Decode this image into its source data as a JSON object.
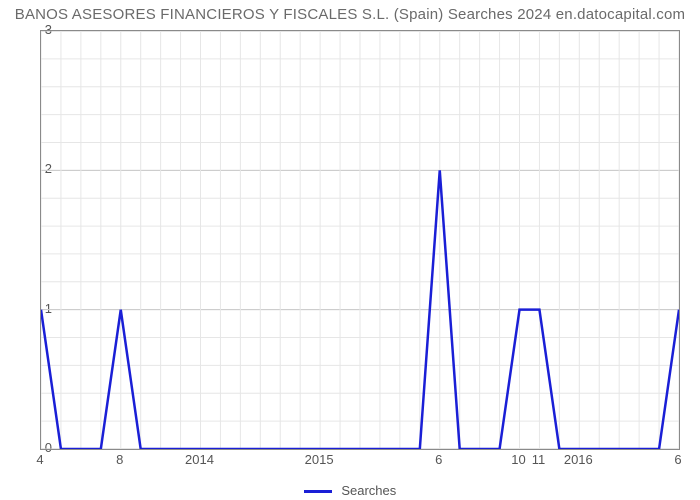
{
  "chart": {
    "type": "line",
    "title": "BANOS ASESORES FINANCIEROS Y FISCALES S.L. (Spain) Searches 2024 en.datocapital.com",
    "title_color": "#6a6a6a",
    "title_fontsize": 15,
    "background_color": "#ffffff",
    "plot_border_color": "#8a8a8a",
    "major_grid_color": "#c9c9c9",
    "minor_grid_color": "#e6e6e6",
    "line_color": "#1a1fd6",
    "line_width": 2.5,
    "y": {
      "min": 0,
      "max": 3,
      "major_ticks": [
        0,
        1,
        2,
        3
      ],
      "minor_step": 0.2,
      "tick_fontsize": 13,
      "tick_color": "#555555"
    },
    "x": {
      "n_points": 33,
      "tick_labels": [
        {
          "i": 0,
          "label": "4"
        },
        {
          "i": 4,
          "label": "8"
        },
        {
          "i": 8,
          "label": "2014"
        },
        {
          "i": 14,
          "label": "2015"
        },
        {
          "i": 20,
          "label": "6"
        },
        {
          "i": 24,
          "label": "10"
        },
        {
          "i": 25,
          "label": "11"
        },
        {
          "i": 27,
          "label": "2016"
        },
        {
          "i": 32,
          "label": "6"
        }
      ],
      "tick_fontsize": 13,
      "tick_color": "#555555"
    },
    "series": {
      "name": "Searches",
      "values": [
        1,
        0,
        0,
        0,
        1,
        0,
        0,
        0,
        0,
        0,
        0,
        0,
        0,
        0,
        0,
        0,
        0,
        0,
        0,
        0,
        2,
        0,
        0,
        0,
        1,
        1,
        0,
        0,
        0,
        0,
        0,
        0,
        1
      ]
    },
    "legend": {
      "label": "Searches",
      "swatch_color": "#1a1fd6",
      "text_color": "#555555",
      "fontsize": 13
    }
  }
}
